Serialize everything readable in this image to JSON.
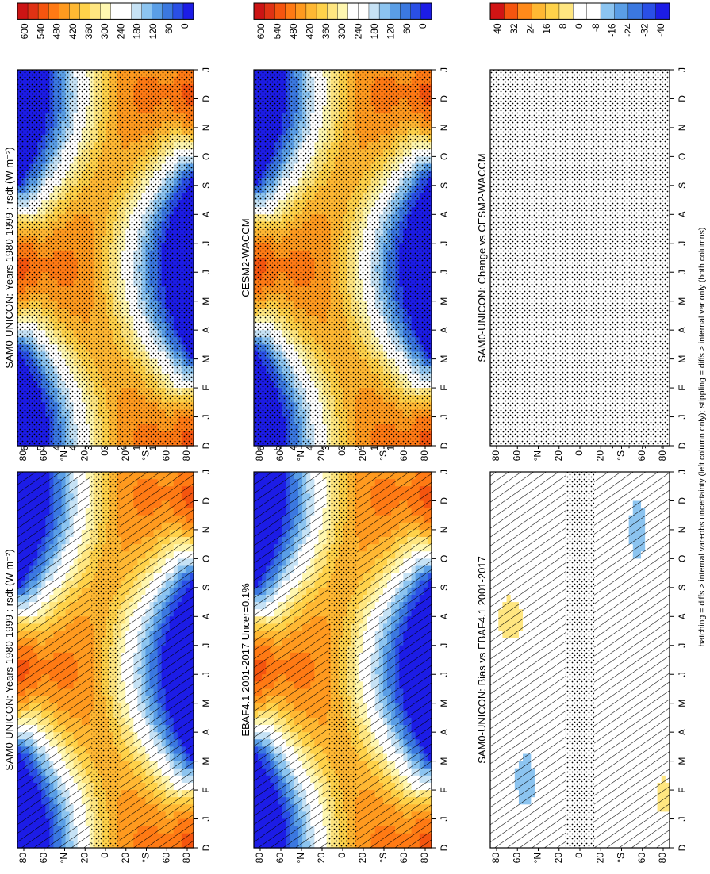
{
  "footnote": "hatching = diffs > internal var+obs uncertainty (left column only); stippling = diffs > internal var only (both columns)",
  "month_labels": [
    "D",
    "J",
    "F",
    "M",
    "A",
    "M",
    "J",
    "J",
    "A",
    "S",
    "O",
    "N",
    "D",
    "J"
  ],
  "lat_labels": [
    "80",
    "60",
    "°N",
    "20",
    "0",
    "20",
    "°S",
    "60",
    "80"
  ],
  "chart_data": [
    {
      "type": "heatmap",
      "id": "p_model_left",
      "title": "SAM0-UNICON: Years 1980-1999 : rsdt (W m⁻²)",
      "field": "rsdt",
      "hatching": true,
      "stippling": "tropics",
      "colorbar_ticks": [
        "600",
        "540",
        "480",
        "420",
        "360",
        "300",
        "240",
        "180",
        "120",
        "60",
        "0"
      ],
      "colorbar_range": [
        0,
        640
      ]
    },
    {
      "type": "heatmap",
      "id": "p_obs",
      "title": "EBAF4.1 2001-2017 Uncer=0.1%",
      "field": "rsdt",
      "hatching": true,
      "stippling": "tropics",
      "colorbar_ticks": [
        "600",
        "540",
        "480",
        "420",
        "360",
        "300",
        "240",
        "180",
        "120",
        "60",
        "0"
      ],
      "colorbar_range": [
        0,
        640
      ]
    },
    {
      "type": "heatmap",
      "id": "p_bias",
      "title": "SAM0-UNICON: Bias vs EBAF4.1 2001-2017",
      "field": "bias",
      "hatching": true,
      "stippling": "tropics",
      "colorbar_ticks": [
        "40",
        "32",
        "24",
        "16",
        "8",
        "0",
        "-8",
        "-16",
        "-24",
        "-32",
        "-40"
      ],
      "colorbar_range": [
        -44,
        44
      ]
    },
    {
      "type": "heatmap",
      "id": "p_model_right",
      "title": "SAM0-UNICON: Years 1980-1999 : rsdt (W m⁻²)",
      "field": "rsdt",
      "hatching": false,
      "stippling": "all",
      "colorbar_ticks": [
        "600",
        "540",
        "480",
        "420",
        "360",
        "300",
        "240",
        "180",
        "120",
        "60",
        "0"
      ],
      "colorbar_range": [
        0,
        640
      ]
    },
    {
      "type": "heatmap",
      "id": "p_cesm",
      "title": "CESM2-WACCM",
      "field": "rsdt",
      "hatching": false,
      "stippling": "all",
      "colorbar_ticks": [
        "600",
        "540",
        "480",
        "420",
        "360",
        "300",
        "240",
        "180",
        "120",
        "60",
        "0"
      ],
      "colorbar_range": [
        0,
        640
      ]
    },
    {
      "type": "heatmap",
      "id": "p_change",
      "title": "SAM0-UNICON: Change vs CESM2-WACCM",
      "field": "zero",
      "hatching": false,
      "stippling": "all",
      "colorbar_ticks": [
        "40",
        "32",
        "24",
        "16",
        "8",
        "0",
        "-8",
        "-16",
        "-24",
        "-32",
        "-40"
      ],
      "colorbar_range": [
        -44,
        44
      ]
    }
  ],
  "palettes": {
    "rsdt": [
      "#1c1ce6",
      "#2a4fe6",
      "#3b78e0",
      "#5a9ee6",
      "#8cc4f0",
      "#c6e2f5",
      "#ffffff",
      "#ffffff",
      "#fff7b0",
      "#ffe680",
      "#ffd24a",
      "#ffb833",
      "#ff9a1f",
      "#ff7a14",
      "#f5550f",
      "#e03214",
      "#cc1414"
    ],
    "diff": [
      "#1c1ce6",
      "#2a4fe6",
      "#3b78e0",
      "#5a9ee6",
      "#8cc4f0",
      "#ffffff",
      "#ffffff",
      "#ffe680",
      "#ffd24a",
      "#ffb833",
      "#ff8a1a",
      "#f5550f",
      "#d11414"
    ]
  }
}
